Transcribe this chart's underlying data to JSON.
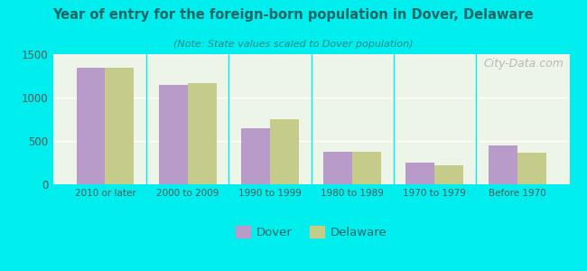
{
  "title": "Year of entry for the foreign-born population in Dover, Delaware",
  "subtitle": "(Note: State values scaled to Dover population)",
  "categories": [
    "2010 or later",
    "2000 to 2009",
    "1990 to 1999",
    "1980 to 1989",
    "1970 to 1979",
    "Before 1970"
  ],
  "dover_values": [
    1340,
    1150,
    650,
    380,
    255,
    450
  ],
  "delaware_values": [
    1340,
    1165,
    745,
    375,
    215,
    360
  ],
  "dover_color": "#b89bc8",
  "delaware_color": "#c5cc8a",
  "background_color": "#00eeee",
  "plot_bg_left": "#d8ecd0",
  "plot_bg_right": "#f8fdf5",
  "ylim": [
    0,
    1500
  ],
  "yticks": [
    0,
    500,
    1000,
    1500
  ],
  "bar_width": 0.35,
  "watermark": "City-Data.com",
  "legend_labels": [
    "Dover",
    "Delaware"
  ],
  "title_color": "#1a6666",
  "subtitle_color": "#2a8888",
  "tick_color": "#555555",
  "grid_color": "#ffffff"
}
